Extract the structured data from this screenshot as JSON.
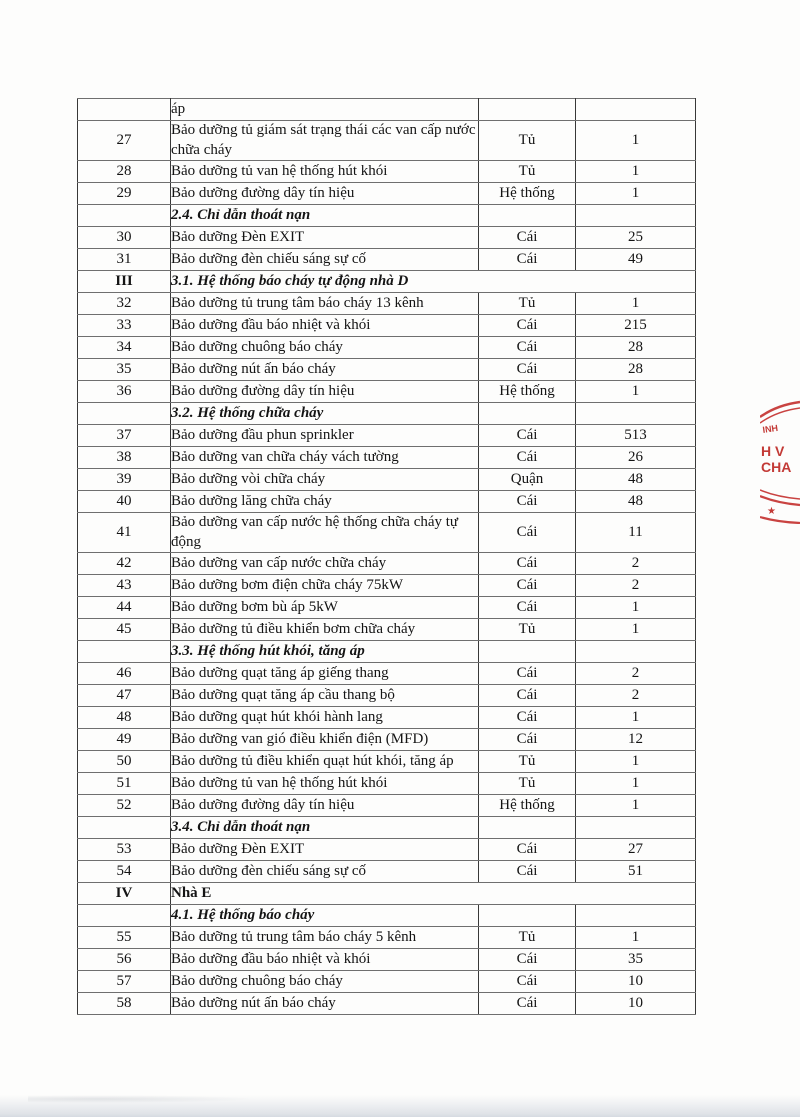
{
  "document": {
    "stamp": {
      "arc_text_top": "INH",
      "text_line1": "H V",
      "text_line2": "CHA",
      "star": "★",
      "color": "#c33a36"
    },
    "table": {
      "rows": [
        {
          "type": "item",
          "no": "",
          "desc": "áp",
          "unit": "",
          "qty": ""
        },
        {
          "type": "item",
          "no": "27",
          "desc": "Bảo dưỡng tủ giám sát trạng thái các van cấp nước chữa cháy",
          "unit": "Tủ",
          "qty": "1"
        },
        {
          "type": "item",
          "no": "28",
          "desc": "Bảo dưỡng tủ van hệ thống hút khói",
          "unit": "Tủ",
          "qty": "1"
        },
        {
          "type": "item",
          "no": "29",
          "desc": "Bảo dưỡng đường dây tín hiệu",
          "unit": "Hệ thống",
          "qty": "1"
        },
        {
          "type": "section",
          "no": "",
          "desc": "2.4. Chỉ dẫn thoát nạn",
          "unit": "",
          "qty": ""
        },
        {
          "type": "item",
          "no": "30",
          "desc": "Bảo dưỡng Đèn EXIT",
          "unit": "Cái",
          "qty": "25"
        },
        {
          "type": "item",
          "no": "31",
          "desc": "Bảo dưỡng đèn chiếu sáng sự cố",
          "unit": "Cái",
          "qty": "49"
        },
        {
          "type": "span-italic",
          "no": "III",
          "desc": "3.1. Hệ thống báo cháy tự động nhà D"
        },
        {
          "type": "item",
          "no": "32",
          "desc": "Bảo dưỡng tủ trung tâm báo cháy 13 kênh",
          "unit": "Tủ",
          "qty": "1"
        },
        {
          "type": "item",
          "no": "33",
          "desc": "Bảo dưỡng đầu báo nhiệt và khói",
          "unit": "Cái",
          "qty": "215"
        },
        {
          "type": "item",
          "no": "34",
          "desc": "Bảo dưỡng chuông báo cháy",
          "unit": "Cái",
          "qty": "28"
        },
        {
          "type": "item",
          "no": "35",
          "desc": "Bảo dưỡng nút ấn báo cháy",
          "unit": "Cái",
          "qty": "28"
        },
        {
          "type": "item",
          "no": "36",
          "desc": "Bảo dưỡng đường dây tín hiệu",
          "unit": "Hệ thống",
          "qty": "1"
        },
        {
          "type": "section",
          "no": "",
          "desc": "3.2. Hệ thống chữa cháy",
          "unit": "",
          "qty": ""
        },
        {
          "type": "item",
          "no": "37",
          "desc": "Bảo dưỡng đầu phun sprinkler",
          "unit": "Cái",
          "qty": "513"
        },
        {
          "type": "item",
          "no": "38",
          "desc": "Bảo dưỡng van chữa cháy vách tường",
          "unit": "Cái",
          "qty": "26"
        },
        {
          "type": "item",
          "no": "39",
          "desc": "Bảo dưỡng vòi chữa cháy",
          "unit": "Quận",
          "qty": "48"
        },
        {
          "type": "item",
          "no": "40",
          "desc": "Bảo dưỡng lăng chữa cháy",
          "unit": "Cái",
          "qty": "48"
        },
        {
          "type": "item",
          "no": "41",
          "desc": "Bảo dưỡng van cấp nước hệ thống chữa cháy tự động",
          "unit": "Cái",
          "qty": "11"
        },
        {
          "type": "item",
          "no": "42",
          "desc": "Bảo dưỡng van cấp nước chữa cháy",
          "unit": "Cái",
          "qty": "2"
        },
        {
          "type": "item",
          "no": "43",
          "desc": "Bảo dưỡng bơm điện chữa cháy 75kW",
          "unit": "Cái",
          "qty": "2"
        },
        {
          "type": "item",
          "no": "44",
          "desc": "Bảo dưỡng bơm bù áp 5kW",
          "unit": "Cái",
          "qty": "1"
        },
        {
          "type": "item",
          "no": "45",
          "desc": "Bảo dưỡng tủ điều khiển bơm chữa cháy",
          "unit": "Tủ",
          "qty": "1"
        },
        {
          "type": "section",
          "no": "",
          "desc": "3.3. Hệ thống hút khói, tăng áp",
          "unit": "",
          "qty": ""
        },
        {
          "type": "item",
          "no": "46",
          "desc": "Bảo dưỡng quạt tăng áp giếng thang",
          "unit": "Cái",
          "qty": "2"
        },
        {
          "type": "item",
          "no": "47",
          "desc": "Bảo dưỡng quạt tăng áp cầu thang bộ",
          "unit": "Cái",
          "qty": "2"
        },
        {
          "type": "item",
          "no": "48",
          "desc": "Bảo dưỡng quạt hút khói hành lang",
          "unit": "Cái",
          "qty": "1"
        },
        {
          "type": "item",
          "no": "49",
          "desc": "Bảo dưỡng van gió điều khiển điện (MFD)",
          "unit": "Cái",
          "qty": "12"
        },
        {
          "type": "item",
          "no": "50",
          "desc": "Bảo dưỡng tủ điều khiển quạt hút khói, tăng áp",
          "unit": "Tủ",
          "qty": "1"
        },
        {
          "type": "item",
          "no": "51",
          "desc": "Bảo dưỡng tủ van hệ thống hút khói",
          "unit": "Tủ",
          "qty": "1"
        },
        {
          "type": "item",
          "no": "52",
          "desc": "Bảo dưỡng đường dây tín hiệu",
          "unit": "Hệ thống",
          "qty": "1"
        },
        {
          "type": "section",
          "no": "",
          "desc": "3.4. Chỉ dẫn thoát nạn",
          "unit": "",
          "qty": ""
        },
        {
          "type": "item",
          "no": "53",
          "desc": "Bảo dưỡng Đèn EXIT",
          "unit": "Cái",
          "qty": "27"
        },
        {
          "type": "item",
          "no": "54",
          "desc": "Bảo dưỡng đèn chiếu sáng sự cố",
          "unit": "Cái",
          "qty": "51"
        },
        {
          "type": "span-plain",
          "no": "IV",
          "desc": "Nhà E"
        },
        {
          "type": "section",
          "no": "",
          "desc": "4.1. Hệ thống báo cháy",
          "unit": "",
          "qty": ""
        },
        {
          "type": "item",
          "no": "55",
          "desc": "Bảo dưỡng tủ trung tâm báo cháy 5 kênh",
          "unit": "Tủ",
          "qty": "1"
        },
        {
          "type": "item",
          "no": "56",
          "desc": "Bảo dưỡng đầu báo nhiệt và khói",
          "unit": "Cái",
          "qty": "35"
        },
        {
          "type": "item",
          "no": "57",
          "desc": "Bảo dưỡng chuông báo cháy",
          "unit": "Cái",
          "qty": "10"
        },
        {
          "type": "item",
          "no": "58",
          "desc": "Bảo dưỡng nút ấn báo cháy",
          "unit": "Cái",
          "qty": "10"
        }
      ]
    }
  }
}
